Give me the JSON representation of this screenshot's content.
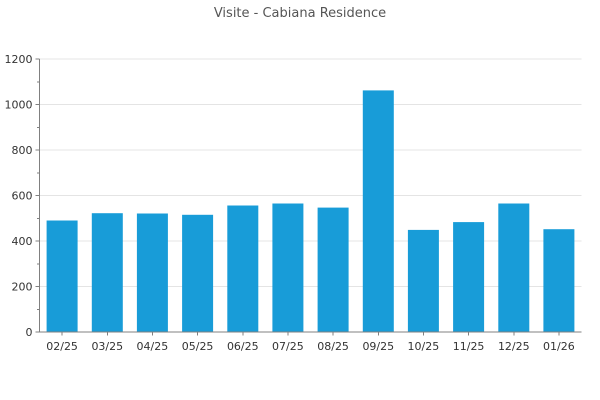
{
  "chart_data": {
    "type": "bar",
    "title": "Visite - Cabiana Residence",
    "categories": [
      "02/25",
      "03/25",
      "04/25",
      "05/25",
      "06/25",
      "07/25",
      "08/25",
      "09/25",
      "10/25",
      "11/25",
      "12/25",
      "01/26"
    ],
    "values": [
      490,
      522,
      521,
      515,
      556,
      565,
      547,
      1062,
      449,
      483,
      565,
      452
    ],
    "xlabel": "",
    "ylabel": "",
    "ylim": [
      0,
      1200
    ],
    "ytick_step": 200,
    "yticks": [
      0,
      200,
      400,
      600,
      800,
      1000,
      1200
    ],
    "minor_tick_step": 100,
    "grid": "horizontal-major-only",
    "legend_position": "none",
    "bar_color": "#189CD8",
    "grid_color": "#E4E4E4",
    "axis_color": "#808080",
    "tick_label_color": "#333333",
    "title_color": "#555555",
    "background_color": "#FFFFFF"
  }
}
